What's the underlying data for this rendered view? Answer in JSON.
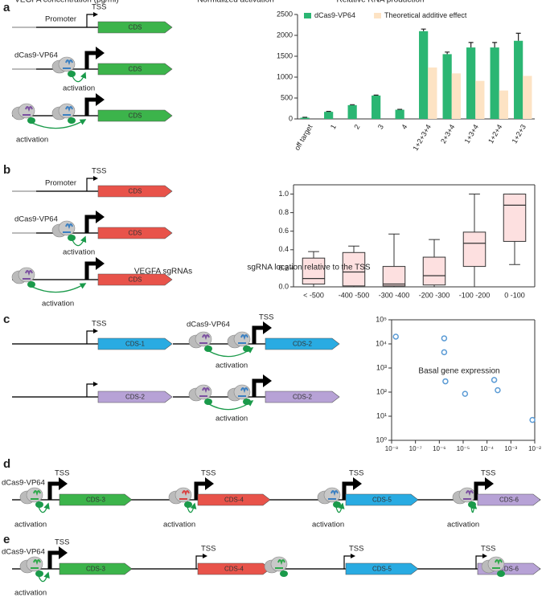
{
  "panel_labels": [
    "a",
    "b",
    "c",
    "d",
    "e"
  ],
  "diagrams": {
    "a": [
      "TSS",
      "Promoter",
      "CDS",
      "dCas9-VP64",
      "activation",
      "CDS",
      "activation",
      "CDS"
    ],
    "b": [
      "TSS",
      "Promoter",
      "CDS",
      "dCas9-VP64",
      "activation",
      "CDS",
      "activation",
      "CDS"
    ],
    "c": [
      "TSS",
      "CDS-1",
      "dCas9-VP64",
      "TSS",
      "CDS-2",
      "activation",
      "CDS-2",
      "activation",
      "CDS-2"
    ],
    "d": [
      "dCas9-VP64",
      "TSS",
      "CDS-3",
      "activation",
      "TSS",
      "CDS-4",
      "activation",
      "TSS",
      "CDS-5",
      "activation",
      "TSS",
      "CDS-6",
      "activation"
    ],
    "e": [
      "dCas9-VP64",
      "TSS",
      "CDS-3",
      "activation",
      "TSS",
      "CDS-4",
      "TSS",
      "CDS-5",
      "TSS",
      "CDS-6"
    ]
  },
  "chart_data": [
    {
      "type": "bar",
      "xlabel": "VEGFA sgRNAs",
      "ylabel": "VEGFA concentration (pg/ml)",
      "categories": [
        "off target",
        "1",
        "2",
        "3",
        "4",
        "1+2+3+4",
        "2+3+4",
        "1+3+4",
        "1+2+4",
        "1+2+3"
      ],
      "series": [
        {
          "name": "dCas9-VP64",
          "color": "#2bb673",
          "values": [
            30,
            170,
            330,
            560,
            220,
            2100,
            1550,
            1710,
            1710,
            1870
          ],
          "errors": [
            10,
            10,
            10,
            10,
            10,
            50,
            50,
            120,
            120,
            180
          ]
        },
        {
          "name": "Theoretical additive effect",
          "color": "#fde3c4",
          "values": [
            null,
            null,
            null,
            null,
            null,
            1230,
            1090,
            910,
            680,
            1030
          ]
        }
      ],
      "ylim": [
        0,
        2500
      ],
      "yticks": [
        0,
        500,
        1000,
        1500,
        2000,
        2500
      ],
      "legend": "top"
    },
    {
      "type": "box",
      "xlabel": "sgRNA location relative to the TSS",
      "ylabel": "Normalized activation",
      "categories": [
        "< -500",
        "-400 -500",
        "-300 -400",
        "-200 -300",
        "-100 -200",
        "0 -100"
      ],
      "color": "#fde0e0",
      "stats": [
        {
          "min": 0.0,
          "q1": 0.03,
          "median": 0.09,
          "q3": 0.31,
          "max": 0.38
        },
        {
          "min": 0.0,
          "q1": 0.01,
          "median": 0.16,
          "q3": 0.37,
          "max": 0.44
        },
        {
          "min": 0.0,
          "q1": 0.01,
          "median": 0.03,
          "q3": 0.22,
          "max": 0.57
        },
        {
          "min": 0.0,
          "q1": 0.02,
          "median": 0.12,
          "q3": 0.32,
          "max": 0.51
        },
        {
          "min": 0.0,
          "q1": 0.22,
          "median": 0.47,
          "q3": 0.59,
          "max": 1.0
        },
        {
          "min": 0.24,
          "q1": 0.49,
          "median": 0.88,
          "q3": 1.0,
          "max": 1.0
        }
      ],
      "ylim": [
        0,
        1.1
      ],
      "yticks": [
        {
          "value": 0,
          "label": "0.0"
        },
        0.2,
        0.4,
        0.6,
        0.8,
        {
          "value": 1,
          "label": "1.0"
        }
      ]
    },
    {
      "type": "scatter",
      "xlabel": "Basal gene expression",
      "ylabel": "Relative RNA production",
      "color": "#5b9bd5",
      "xscale": "log",
      "yscale": "log",
      "x": [
        1.5e-08,
        1.6e-06,
        1.6e-06,
        1.8e-06,
        1.2e-05,
        0.0002,
        0.00028,
        0.008
      ],
      "y": [
        20000,
        17000,
        4500,
        280,
        85,
        320,
        120,
        7
      ],
      "xlim": [
        1e-08,
        0.01
      ],
      "xticks": [
        {
          "value": 1e-08,
          "label": "10⁻⁸"
        },
        {
          "value": 1e-07,
          "label": "10⁻⁷"
        },
        {
          "value": 1e-06,
          "label": "10⁻⁶"
        },
        {
          "value": 1e-05,
          "label": "10⁻⁵"
        },
        {
          "value": 0.0001,
          "label": "10⁻⁴"
        },
        {
          "value": 0.001,
          "label": "10⁻³"
        },
        {
          "value": 0.01,
          "label": "10⁻²"
        }
      ],
      "ylim": [
        1,
        100000
      ],
      "yticks": [
        {
          "value": 1,
          "label": "10⁰"
        },
        {
          "value": 10,
          "label": "10¹"
        },
        {
          "value": 100,
          "label": "10²"
        },
        {
          "value": 1000,
          "label": "10³"
        },
        {
          "value": 10000,
          "label": "10⁴"
        },
        {
          "value": 100000,
          "label": "10⁵"
        }
      ]
    }
  ]
}
